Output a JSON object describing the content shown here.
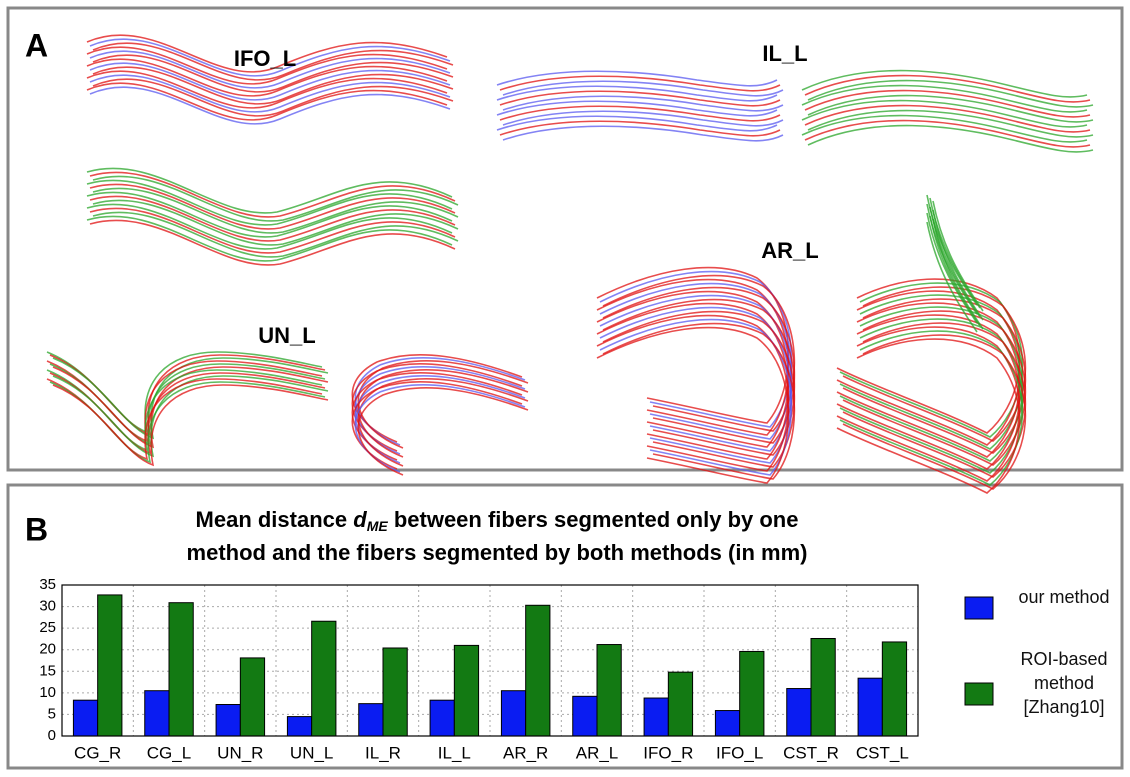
{
  "panel_a": {
    "letter": "A",
    "labels": [
      "IFO_L",
      "IL_L",
      "AR_L",
      "UN_L"
    ]
  },
  "chart_data": {
    "type": "bar",
    "letter": "B",
    "title_lead": "Mean distance",
    "title_symbol": "d",
    "title_subscript": "ME",
    "title_line1_rest": "between fibers segmented only by one",
    "title_line2": "method and the fibers segmented by both methods (in mm)",
    "categories": [
      "CG_R",
      "CG_L",
      "UN_R",
      "UN_L",
      "IL_R",
      "IL_L",
      "AR_R",
      "AR_L",
      "IFO_R",
      "IFO_L",
      "CST_R",
      "CST_L"
    ],
    "series": [
      {
        "name": "our method",
        "color": "#0a1cf2",
        "values": [
          8.3,
          10.5,
          7.3,
          4.5,
          7.5,
          8.3,
          10.5,
          9.2,
          8.8,
          5.9,
          11.0,
          13.4
        ]
      },
      {
        "name": "ROI-based method [Zhang10]",
        "color": "#137a13",
        "values": [
          32.7,
          30.9,
          18.1,
          26.6,
          20.4,
          21.0,
          30.3,
          21.2,
          14.8,
          19.6,
          22.6,
          21.8
        ]
      }
    ],
    "ylim": [
      0,
      35
    ],
    "yticks": [
      0,
      5,
      10,
      15,
      20,
      25,
      30,
      35
    ],
    "grid": true
  }
}
